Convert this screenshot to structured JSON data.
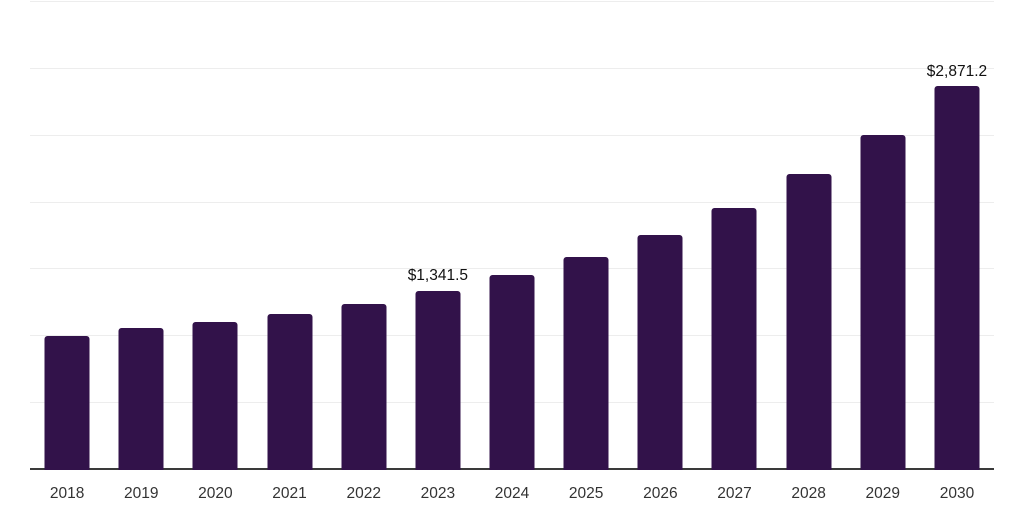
{
  "chart_data": {
    "type": "bar",
    "categories": [
      "2018",
      "2019",
      "2020",
      "2021",
      "2022",
      "2023",
      "2024",
      "2025",
      "2026",
      "2027",
      "2028",
      "2029",
      "2030"
    ],
    "values": [
      1000,
      1065,
      1110,
      1170,
      1245,
      1341.5,
      1455,
      1595,
      1760,
      1960,
      2215,
      2505,
      2871.2
    ],
    "bar_labels": {
      "2023": "$1,341.5",
      "2030": "$2,871.2"
    },
    "title": "",
    "xlabel": "",
    "ylabel": "",
    "ylim": [
      0,
      3500
    ],
    "gridline_step": 500,
    "grid": true,
    "legend": "none",
    "bar_color": "#32124a",
    "gridline_color": "#ededed",
    "axis_color": "#3a3a3a",
    "value_label_color": "#111111",
    "tick_label_color": "#333333"
  }
}
